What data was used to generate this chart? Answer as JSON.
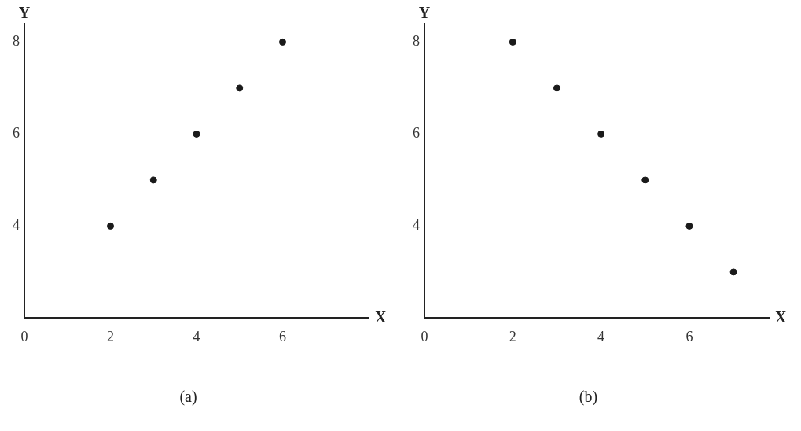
{
  "chart_data": [
    {
      "type": "scatter",
      "title": "(a)",
      "xlabel": "X",
      "ylabel": "Y",
      "x": [
        2,
        3,
        4,
        5,
        6
      ],
      "series": [
        {
          "color": "#1a1a1a",
          "values": [
            4,
            5,
            6,
            7,
            8
          ]
        }
      ],
      "xlim": [
        0,
        8
      ],
      "xticks": [
        0,
        2,
        4,
        6
      ],
      "ylim": [
        2,
        8.4
      ],
      "yticks": [
        4,
        6,
        8
      ],
      "grid": false,
      "legend": false,
      "marker": "circle"
    },
    {
      "type": "scatter",
      "title": "(b)",
      "xlabel": "X",
      "ylabel": "Y",
      "x": [
        2,
        3,
        4,
        5,
        6,
        7
      ],
      "series": [
        {
          "color": "#1a1a1a",
          "values": [
            8,
            7,
            6,
            5,
            4,
            3
          ]
        }
      ],
      "xlim": [
        0,
        7.8
      ],
      "xticks": [
        0,
        2,
        4,
        6
      ],
      "ylim": [
        2,
        8.4
      ],
      "yticks": [
        4,
        6,
        8
      ],
      "grid": false,
      "legend": false,
      "marker": "circle"
    }
  ]
}
